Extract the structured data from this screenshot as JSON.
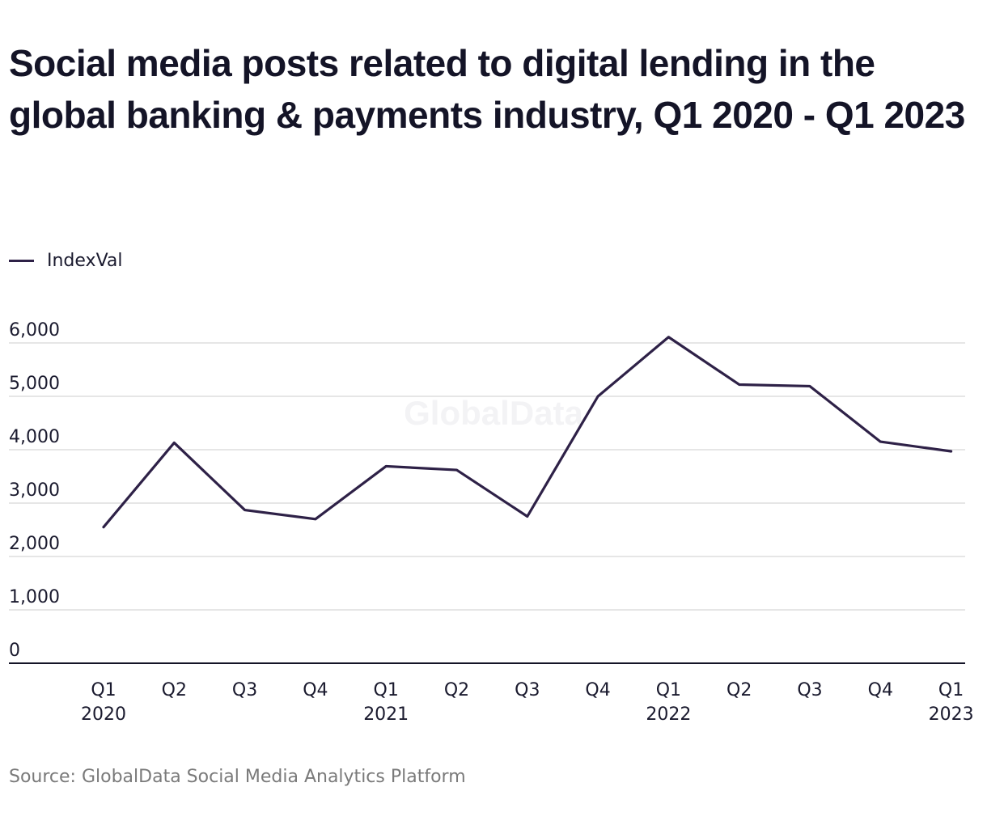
{
  "chart_data": {
    "type": "line",
    "title": "Social media posts related to digital lending in the global banking & payments industry, Q1 2020 - Q1 2023",
    "categories": [
      [
        "Q1",
        "2020"
      ],
      [
        "Q2",
        ""
      ],
      [
        "Q3",
        ""
      ],
      [
        "Q4",
        ""
      ],
      [
        "Q1",
        "2021"
      ],
      [
        "Q2",
        ""
      ],
      [
        "Q3",
        ""
      ],
      [
        "Q4",
        ""
      ],
      [
        "Q1",
        "2022"
      ],
      [
        "Q2",
        ""
      ],
      [
        "Q3",
        ""
      ],
      [
        "Q4",
        ""
      ],
      [
        "Q1",
        "2023"
      ]
    ],
    "series": [
      {
        "name": "IndexVal",
        "color": "#2e2147",
        "values": [
          2550,
          4130,
          2870,
          2700,
          3690,
          3620,
          2750,
          5000,
          6110,
          5220,
          5190,
          4150,
          3970
        ]
      }
    ],
    "yticks": [
      0,
      1000,
      2000,
      3000,
      4000,
      5000,
      6000
    ],
    "ytick_labels": [
      "0",
      "1,000",
      "2,000",
      "3,000",
      "4,000",
      "5,000",
      "6,000"
    ],
    "ylim": [
      0,
      6000
    ],
    "xlabel": "",
    "ylabel": "",
    "grid": true,
    "legend": "top-left",
    "watermark": "GlobalData",
    "source": "Source: GlobalData Social Media Analytics Platform"
  }
}
